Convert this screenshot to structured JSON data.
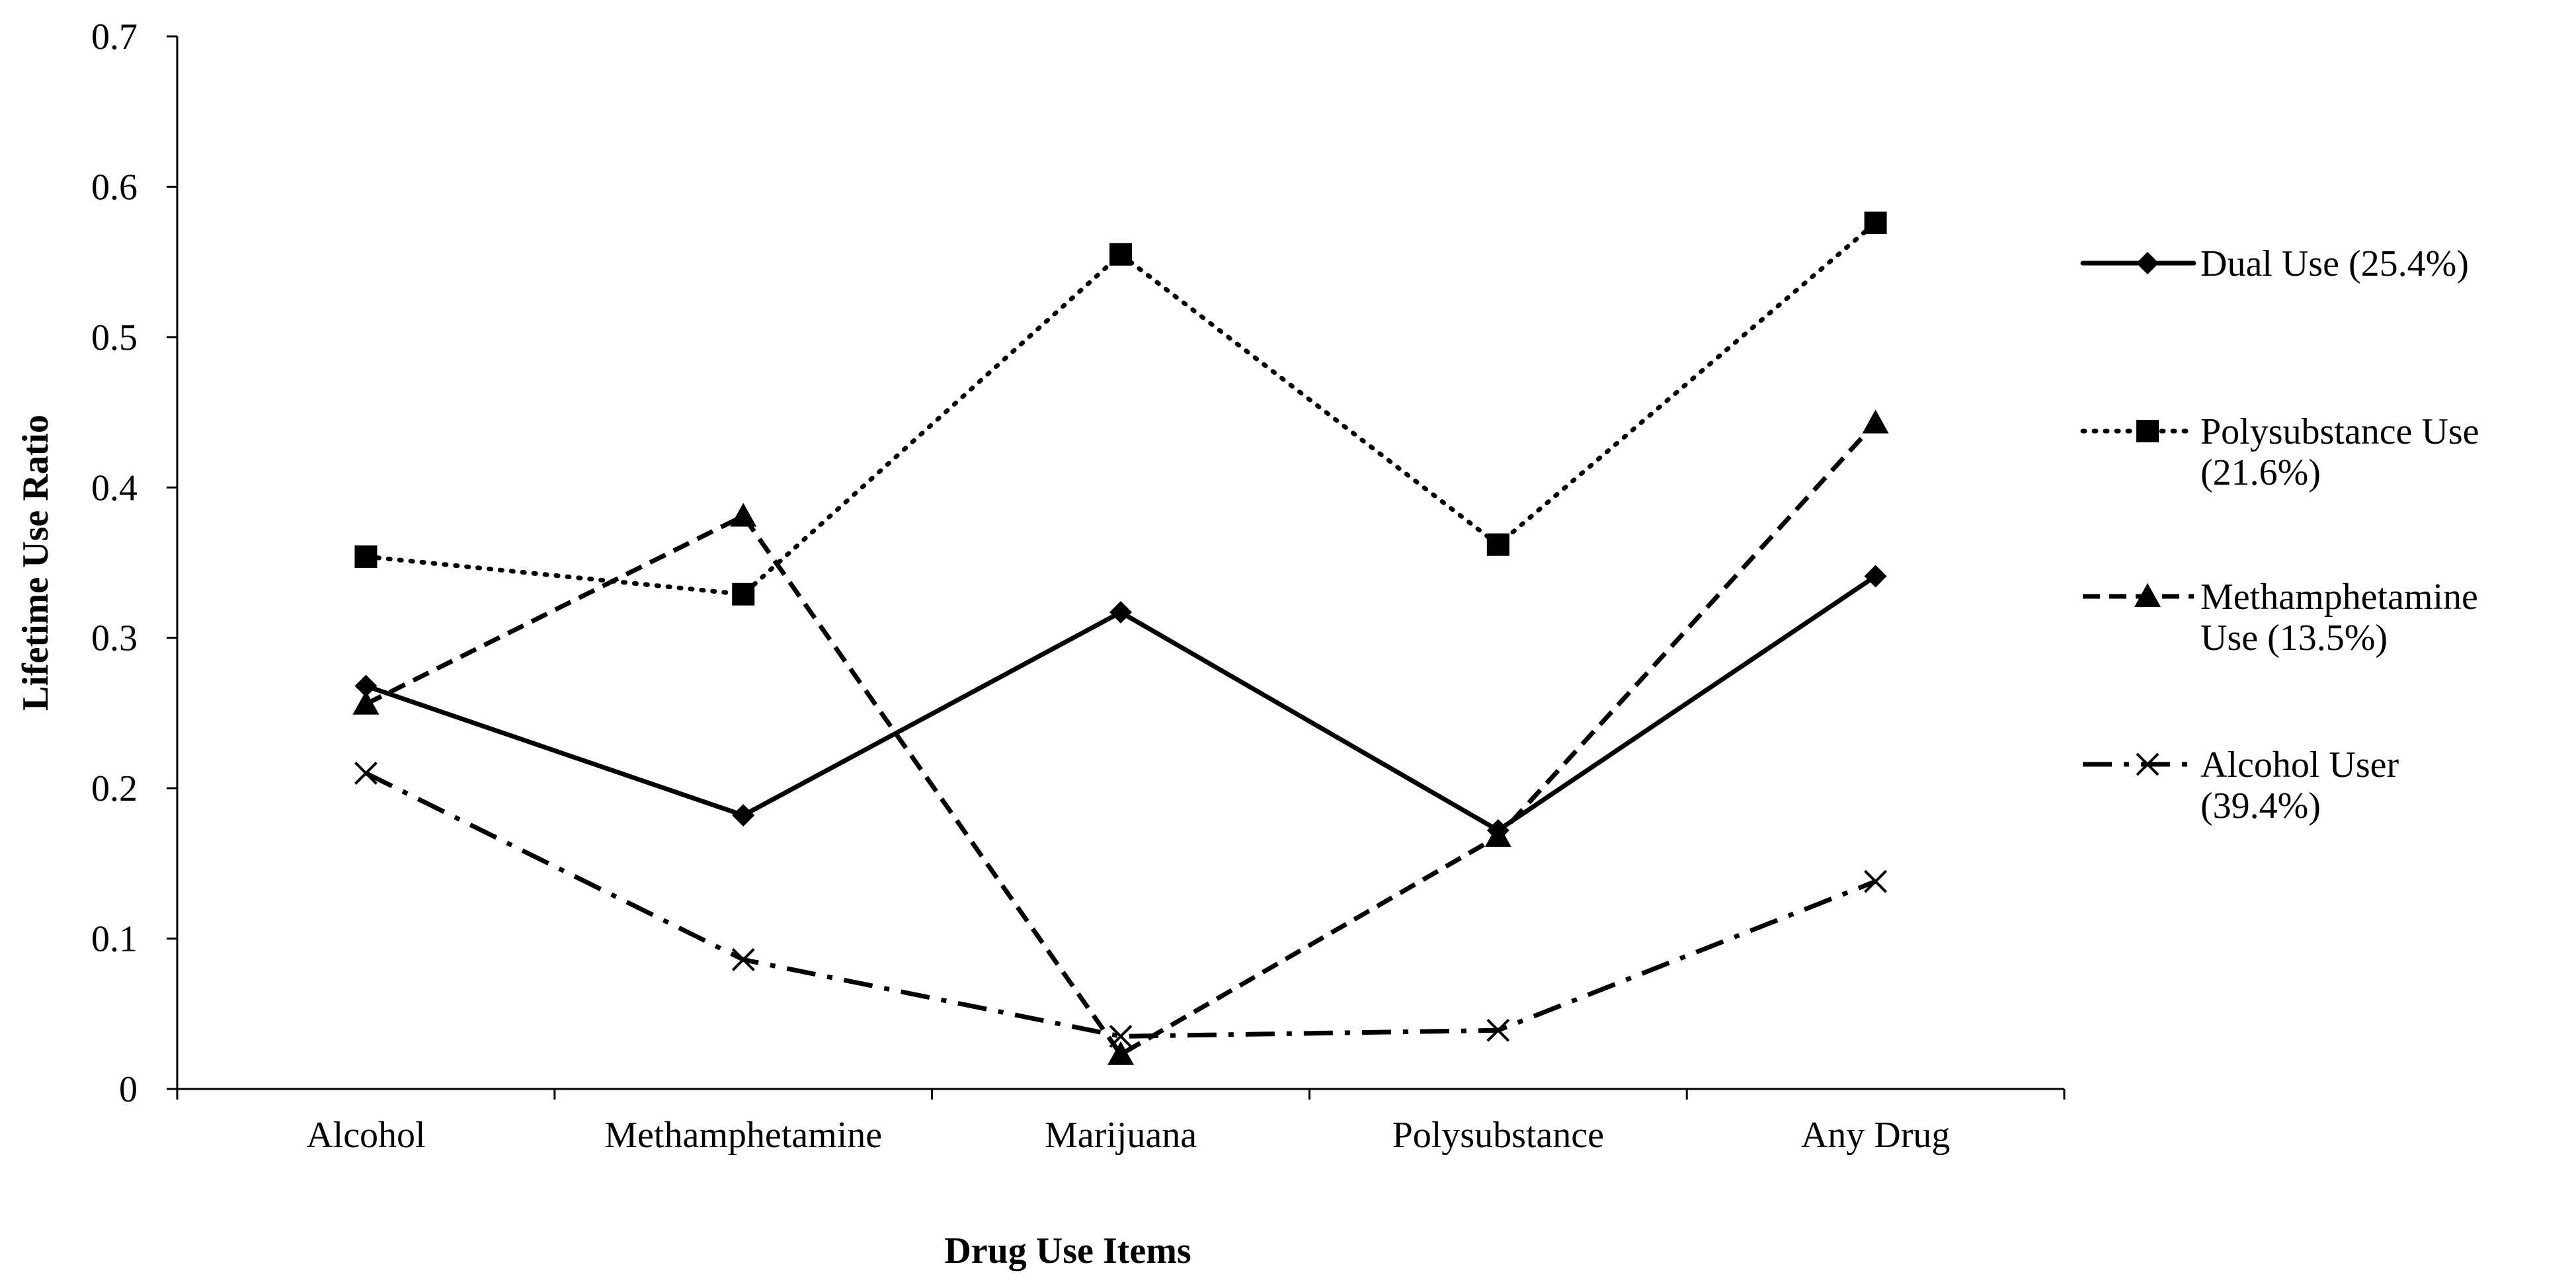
{
  "chart_data": {
    "type": "line",
    "title": "",
    "xlabel": "Drug Use Items",
    "ylabel": "Lifetime Use Ratio",
    "ylim": [
      0,
      0.7
    ],
    "yticks": [
      "0",
      "0.1",
      "0.2",
      "0.3",
      "0.4",
      "0.5",
      "0.6",
      "0.7"
    ],
    "categories": [
      "Alcohol",
      "Methamphetamine",
      "Marijuana",
      "Polysubstance",
      "Any Drug"
    ],
    "grid": false,
    "legend_position": "right",
    "series": [
      {
        "name": "Dual Use (25.4%)",
        "legend_lines": [
          "Dual Use (25.4%)"
        ],
        "values": [
          0.268,
          0.182,
          0.317,
          0.172,
          0.341
        ],
        "line_style": "solid",
        "marker": "diamond"
      },
      {
        "name": "Polysubstance Use (21.6%)",
        "legend_lines": [
          "Polysubstance Use",
          "(21.6%)"
        ],
        "values": [
          0.354,
          0.329,
          0.555,
          0.362,
          0.576
        ],
        "line_style": "dotted",
        "marker": "square"
      },
      {
        "name": "Methamphetamine Use (13.5%)",
        "legend_lines": [
          "Methamphetamine",
          "Use (13.5%)"
        ],
        "values": [
          0.256,
          0.381,
          0.023,
          0.168,
          0.443
        ],
        "line_style": "dashed",
        "marker": "triangle"
      },
      {
        "name": "Alcohol User (39.4%)",
        "legend_lines": [
          "Alcohol User",
          "(39.4%)"
        ],
        "values": [
          0.21,
          0.086,
          0.035,
          0.039,
          0.138
        ],
        "line_style": "dashdot",
        "marker": "x"
      }
    ]
  }
}
